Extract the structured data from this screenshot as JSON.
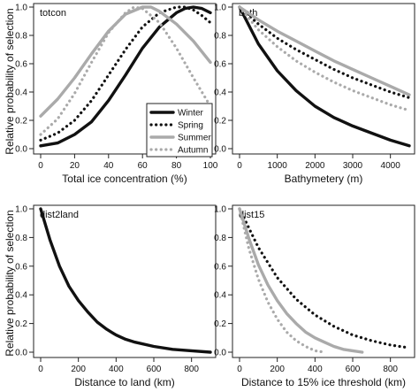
{
  "figure": {
    "ylabel": "Relative probability of selection"
  },
  "legend": {
    "entries": [
      {
        "name": "Winter",
        "color": "#111111",
        "style": "solid"
      },
      {
        "name": "Spring",
        "color": "#111111",
        "style": "dotted"
      },
      {
        "name": "Summer",
        "color": "#aaaaaa",
        "style": "solid"
      },
      {
        "name": "Autumn",
        "color": "#aaaaaa",
        "style": "dotted"
      }
    ]
  },
  "chart_data": [
    {
      "type": "line",
      "panel_label": "totcon",
      "xlabel": "Total ice concentration (%)",
      "ylabel": "Relative probability of selection",
      "xlim": [
        0,
        100
      ],
      "ylim": [
        0,
        1
      ],
      "xticks": [
        0,
        20,
        40,
        60,
        80,
        100
      ],
      "yticks": [
        0.0,
        0.2,
        0.4,
        0.6,
        0.8,
        1.0
      ],
      "legend_position": "bottom-right",
      "grid": false,
      "series": [
        {
          "name": "Winter",
          "color": "#111111",
          "style": "solid",
          "x": [
            0,
            10,
            20,
            30,
            40,
            50,
            60,
            70,
            80,
            85,
            90,
            95,
            100
          ],
          "y": [
            0.02,
            0.04,
            0.1,
            0.19,
            0.34,
            0.52,
            0.71,
            0.86,
            0.96,
            0.99,
            1.0,
            0.99,
            0.96
          ]
        },
        {
          "name": "Spring",
          "color": "#111111",
          "style": "dotted",
          "x": [
            0,
            10,
            20,
            30,
            40,
            50,
            60,
            70,
            80,
            85,
            90,
            95,
            100
          ],
          "y": [
            0.06,
            0.11,
            0.2,
            0.34,
            0.52,
            0.7,
            0.86,
            0.96,
            1.0,
            1.0,
            0.98,
            0.94,
            0.89
          ]
        },
        {
          "name": "Summer",
          "color": "#aaaaaa",
          "style": "solid",
          "x": [
            0,
            10,
            20,
            30,
            40,
            50,
            60,
            65,
            70,
            80,
            90,
            100
          ],
          "y": [
            0.23,
            0.35,
            0.5,
            0.67,
            0.83,
            0.95,
            1.0,
            1.0,
            0.97,
            0.88,
            0.76,
            0.61
          ]
        },
        {
          "name": "Autumn",
          "color": "#aaaaaa",
          "style": "dotted",
          "x": [
            0,
            10,
            20,
            30,
            40,
            50,
            55,
            60,
            70,
            80,
            90,
            100
          ],
          "y": [
            0.1,
            0.21,
            0.39,
            0.61,
            0.82,
            0.96,
            1.0,
            0.99,
            0.89,
            0.71,
            0.5,
            0.3
          ]
        }
      ]
    },
    {
      "type": "line",
      "panel_label": "bath",
      "xlabel": "Bathymetery (m)",
      "ylabel": "",
      "xlim": [
        0,
        4500
      ],
      "ylim": [
        0,
        1
      ],
      "xticks": [
        0,
        1000,
        2000,
        3000,
        4000
      ],
      "yticks": [
        0.0,
        0.2,
        0.4,
        0.6,
        0.8,
        1.0
      ],
      "grid": false,
      "series": [
        {
          "name": "Winter",
          "color": "#111111",
          "style": "solid",
          "x": [
            0,
            500,
            1000,
            1500,
            2000,
            2500,
            3000,
            3500,
            4000,
            4500
          ],
          "y": [
            1.0,
            0.74,
            0.55,
            0.41,
            0.3,
            0.22,
            0.16,
            0.11,
            0.06,
            0.02
          ]
        },
        {
          "name": "Spring",
          "color": "#111111",
          "style": "dotted",
          "x": [
            0,
            500,
            1000,
            1500,
            2000,
            2500,
            3000,
            3500,
            4000,
            4500
          ],
          "y": [
            1.0,
            0.88,
            0.78,
            0.7,
            0.63,
            0.56,
            0.5,
            0.45,
            0.4,
            0.36
          ]
        },
        {
          "name": "Summer",
          "color": "#aaaaaa",
          "style": "solid",
          "x": [
            0,
            500,
            1000,
            1500,
            2000,
            2500,
            3000,
            3500,
            4000,
            4500
          ],
          "y": [
            1.0,
            0.91,
            0.83,
            0.76,
            0.69,
            0.62,
            0.56,
            0.5,
            0.44,
            0.38
          ]
        },
        {
          "name": "Autumn",
          "color": "#aaaaaa",
          "style": "dotted",
          "x": [
            0,
            500,
            1000,
            1500,
            2000,
            2500,
            3000,
            3500,
            4000,
            4500
          ],
          "y": [
            1.0,
            0.84,
            0.72,
            0.62,
            0.54,
            0.47,
            0.41,
            0.36,
            0.31,
            0.27
          ]
        }
      ]
    },
    {
      "type": "line",
      "panel_label": "dist2land",
      "xlabel": "Distance to land (km)",
      "ylabel": "Relative probability of selection",
      "xlim": [
        0,
        900
      ],
      "ylim": [
        0,
        1
      ],
      "xticks": [
        0,
        200,
        400,
        600,
        800
      ],
      "yticks": [
        0.0,
        0.2,
        0.4,
        0.6,
        0.8,
        1.0
      ],
      "grid": false,
      "series": [
        {
          "name": "Winter",
          "color": "#111111",
          "style": "solid",
          "x": [
            0,
            50,
            100,
            150,
            200,
            250,
            300,
            350,
            400,
            450,
            500,
            600,
            700,
            800,
            900
          ],
          "y": [
            1.0,
            0.78,
            0.6,
            0.46,
            0.36,
            0.28,
            0.21,
            0.16,
            0.12,
            0.09,
            0.07,
            0.04,
            0.02,
            0.01,
            0.0
          ]
        }
      ]
    },
    {
      "type": "line",
      "panel_label": "dist15",
      "xlabel": "Distance to 15% ice threshold (km)",
      "ylabel": "",
      "xlim": [
        0,
        900
      ],
      "ylim": [
        0,
        1
      ],
      "xticks": [
        0,
        200,
        400,
        600,
        800
      ],
      "yticks": [
        0.0,
        0.2,
        0.4,
        0.6,
        0.8,
        1.0
      ],
      "grid": false,
      "series": [
        {
          "name": "Spring",
          "color": "#111111",
          "style": "dotted",
          "x": [
            0,
            100,
            200,
            300,
            400,
            500,
            600,
            700,
            800,
            900
          ],
          "y": [
            1.0,
            0.73,
            0.52,
            0.37,
            0.26,
            0.18,
            0.12,
            0.08,
            0.05,
            0.03
          ]
        },
        {
          "name": "Summer",
          "color": "#aaaaaa",
          "style": "solid",
          "x": [
            0,
            50,
            100,
            150,
            200,
            250,
            300,
            350,
            400,
            450,
            500,
            550,
            600,
            650
          ],
          "y": [
            1.0,
            0.79,
            0.61,
            0.47,
            0.36,
            0.27,
            0.2,
            0.14,
            0.1,
            0.07,
            0.04,
            0.02,
            0.01,
            0.0
          ]
        },
        {
          "name": "Autumn",
          "color": "#aaaaaa",
          "style": "dotted",
          "x": [
            0,
            50,
            100,
            150,
            200,
            250,
            300,
            350,
            400,
            450
          ],
          "y": [
            1.0,
            0.72,
            0.51,
            0.35,
            0.23,
            0.14,
            0.08,
            0.04,
            0.01,
            0.0
          ]
        }
      ]
    }
  ]
}
